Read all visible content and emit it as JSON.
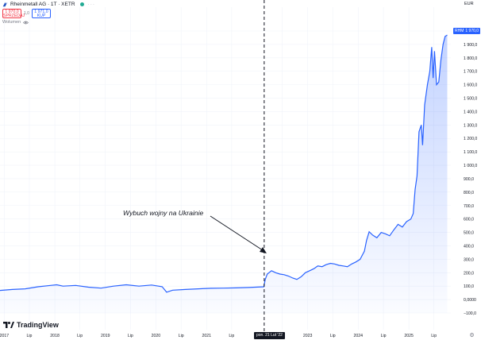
{
  "header": {
    "symbol": "Rheinmetall AG · 1T · XETR",
    "dots": "···"
  },
  "quote": {
    "sell_price": "1 970,0",
    "sell_label": "SPRZEDAJ",
    "spread": "1,0",
    "buy_price": "1 971,0",
    "buy_label": "KUP"
  },
  "volume_label": "Wolumen",
  "currency": "EUR",
  "brand": "TradingView",
  "annotation": "Wybuch wojny na Ukrainie",
  "cursor_label": "pon. 21 Lut '22",
  "price_tag": {
    "name": "RHM",
    "value": "1 970,0"
  },
  "colors": {
    "line": "#2962ff",
    "fill": "#2962ff",
    "text": "#131722",
    "muted": "#787b86",
    "sell": "#f23645",
    "buy": "#2962ff"
  },
  "chart_data": {
    "type": "area",
    "title": "",
    "xlabel": "",
    "ylabel": "",
    "ylim": [
      -100,
      2000
    ],
    "xlim": [
      "2016-12-01",
      "2025-10-31"
    ],
    "y_ticks": [
      "2 000,0",
      "1 900,0",
      "1 800,0",
      "1 700,0",
      "1 600,0",
      "1 500,0",
      "1 400,0",
      "1 300,0",
      "1 200,0",
      "1 100,0",
      "1 000,0",
      "900,0",
      "800,0",
      "700,0",
      "600,0",
      "500,0",
      "400,0",
      "300,0",
      "200,0",
      "100,0",
      "0,0000",
      "−100,0"
    ],
    "x_ticks": [
      {
        "label": "2017",
        "date": "2017-01-01"
      },
      {
        "label": "Lip",
        "date": "2017-07-01"
      },
      {
        "label": "2018",
        "date": "2018-01-01"
      },
      {
        "label": "Lip",
        "date": "2018-07-01"
      },
      {
        "label": "2019",
        "date": "2019-01-01"
      },
      {
        "label": "Lip",
        "date": "2019-07-01"
      },
      {
        "label": "2020",
        "date": "2020-01-01"
      },
      {
        "label": "Lip",
        "date": "2020-07-01"
      },
      {
        "label": "2021",
        "date": "2021-01-01"
      },
      {
        "label": "Lip",
        "date": "2021-07-01"
      },
      {
        "label": "Lip",
        "date": "2022-07-01"
      },
      {
        "label": "2023",
        "date": "2023-01-01"
      },
      {
        "label": "Lip",
        "date": "2023-07-01"
      },
      {
        "label": "2024",
        "date": "2024-01-01"
      },
      {
        "label": "Lip",
        "date": "2024-07-01"
      },
      {
        "label": "2025",
        "date": "2025-01-01"
      },
      {
        "label": "Lip",
        "date": "2025-07-01"
      }
    ],
    "marker_date": "2022-02-21",
    "series": [
      {
        "x": [
          "2016-12-01",
          "2017-03-01",
          "2017-06-01",
          "2017-09-01",
          "2017-12-01",
          "2018-01-15",
          "2018-03-01",
          "2018-06-01",
          "2018-09-01",
          "2018-12-01",
          "2019-03-01",
          "2019-06-01",
          "2019-09-01",
          "2019-12-01",
          "2020-02-15",
          "2020-03-18",
          "2020-05-01",
          "2020-08-01",
          "2020-11-01",
          "2021-02-01",
          "2021-05-01",
          "2021-08-01",
          "2021-11-01",
          "2022-02-18",
          "2022-03-01",
          "2022-03-15",
          "2022-04-15",
          "2022-05-15",
          "2022-06-15",
          "2022-07-15",
          "2022-08-15",
          "2022-09-15",
          "2022-10-15",
          "2022-11-15",
          "2022-12-15",
          "2023-01-15",
          "2023-02-15",
          "2023-03-15",
          "2023-04-15",
          "2023-05-15",
          "2023-06-15",
          "2023-07-15",
          "2023-08-15",
          "2023-09-15",
          "2023-10-15",
          "2023-11-15",
          "2023-12-15",
          "2024-01-15",
          "2024-02-15",
          "2024-03-01",
          "2024-03-20",
          "2024-04-15",
          "2024-05-15",
          "2024-06-15",
          "2024-07-15",
          "2024-08-15",
          "2024-09-15",
          "2024-10-15",
          "2024-11-15",
          "2024-12-15",
          "2025-01-15",
          "2025-02-01",
          "2025-02-15",
          "2025-03-01",
          "2025-03-15",
          "2025-04-01",
          "2025-04-10",
          "2025-04-25",
          "2025-05-15",
          "2025-06-01",
          "2025-06-15",
          "2025-06-25",
          "2025-07-05",
          "2025-07-20",
          "2025-08-05",
          "2025-08-20",
          "2025-09-05",
          "2025-09-20",
          "2025-10-05"
        ],
        "y": [
          68,
          75,
          80,
          95,
          105,
          110,
          100,
          105,
          92,
          85,
          100,
          110,
          100,
          108,
          96,
          55,
          70,
          75,
          80,
          84,
          85,
          87,
          90,
          95,
          150,
          190,
          215,
          200,
          190,
          185,
          175,
          160,
          150,
          170,
          200,
          215,
          230,
          250,
          245,
          260,
          270,
          265,
          255,
          250,
          245,
          265,
          280,
          300,
          360,
          440,
          505,
          480,
          460,
          500,
          490,
          475,
          520,
          560,
          540,
          580,
          600,
          640,
          820,
          920,
          1250,
          1300,
          1150,
          1450,
          1600,
          1700,
          1880,
          1650,
          1850,
          1600,
          1620,
          1780,
          1900,
          1960,
          1970
        ]
      }
    ]
  }
}
